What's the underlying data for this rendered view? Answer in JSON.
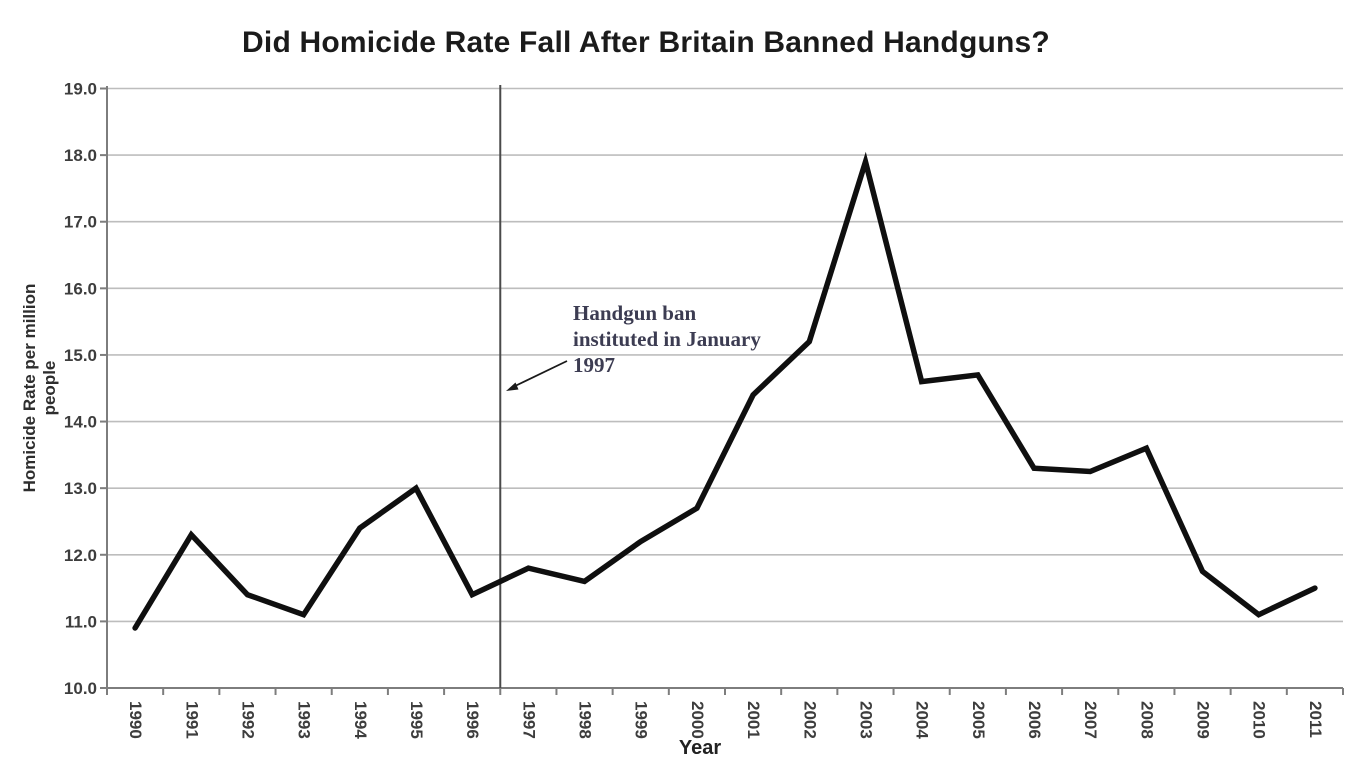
{
  "chart_data": {
    "type": "line",
    "title": "Did Homicide Rate Fall After Britain Banned Handguns?",
    "xlabel": "Year",
    "ylabel": "Homicide Rate per million people",
    "categories": [
      1990,
      1991,
      1992,
      1993,
      1994,
      1995,
      1996,
      1997,
      1998,
      1999,
      2000,
      2001,
      2002,
      2003,
      2004,
      2005,
      2006,
      2007,
      2008,
      2009,
      2010,
      2011
    ],
    "values": [
      10.9,
      12.3,
      11.4,
      11.1,
      12.4,
      13.0,
      11.4,
      11.8,
      11.6,
      12.2,
      12.7,
      14.4,
      15.2,
      17.9,
      14.6,
      14.7,
      13.3,
      13.25,
      13.6,
      11.75,
      11.1,
      11.5
    ],
    "ylim": [
      10.0,
      19.0
    ],
    "ytick_step": 1.0,
    "grid": "horizontal",
    "legend": "none",
    "annotation": {
      "text_lines": [
        "Handgun ban",
        "instituted in January",
        "1997"
      ],
      "arrow_points_to_x": 1996.5,
      "color": "#3c3c52"
    },
    "vline": {
      "x_value": 1996.5,
      "color": "#4a4a4a"
    },
    "colors": {
      "background": "#ffffff",
      "series": "#0f0f0f",
      "gridline": "#bdbdbd",
      "axis": "#7d7d7d",
      "tick_labels": "#3d3d3d",
      "title": "#1b1b1b",
      "arrow": "#1a1a1a"
    }
  }
}
